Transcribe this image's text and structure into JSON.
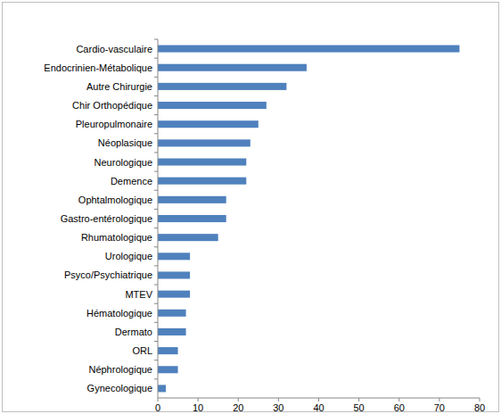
{
  "chart_data": {
    "type": "bar",
    "orientation": "horizontal",
    "categories": [
      "Cardio-vasculaire",
      "Endocrinien-Métabolique",
      "Autre Chirurgie",
      "Chir Orthopédique",
      "Pleuropulmonaire",
      "Néoplasique",
      "Neurologique",
      "Demence",
      "Ophtalmologique",
      "Gastro-entérologique",
      "Rhumatologique",
      "Urologique",
      "Psyco/Psychiatrique",
      "MTEV",
      "Hématologique",
      "Dermato",
      "ORL",
      "Néphrologique",
      "Gynecologique"
    ],
    "values": [
      75,
      37,
      32,
      27,
      25,
      23,
      22,
      22,
      17,
      17,
      15,
      8,
      8,
      8,
      7,
      7,
      5,
      5,
      2
    ],
    "color": "#4f81bd",
    "xlim": [
      0,
      80
    ],
    "xticks": [
      0,
      10,
      20,
      30,
      40,
      50,
      60,
      70,
      80
    ],
    "grid": false
  }
}
